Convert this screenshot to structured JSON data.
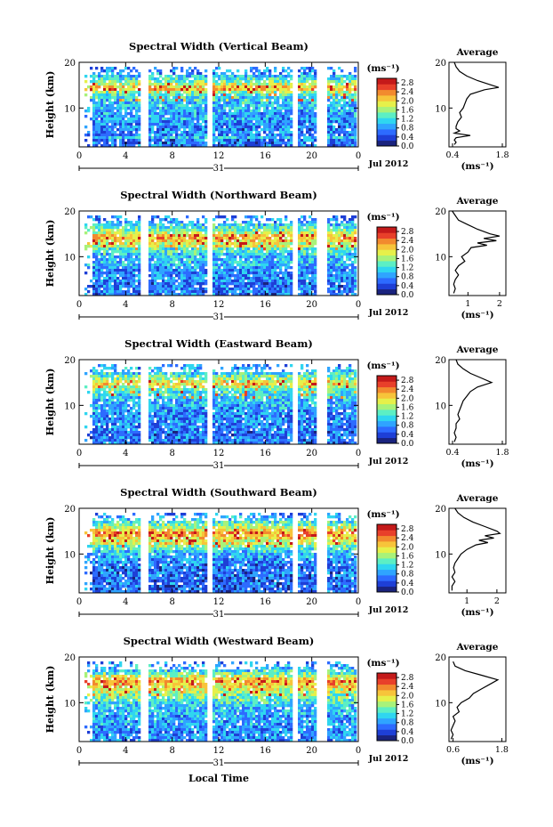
{
  "figure": {
    "date_label": "Jul 2012",
    "day_label": "31",
    "xlabel": "Local Time",
    "ylabel": "Height (km)",
    "unit_label": "(ms⁻¹)",
    "avg_title": "Average",
    "colorbar_ticks": [
      "2.8",
      "2.4",
      "2.0",
      "1.6",
      "1.2",
      "0.8",
      "0.4",
      "0.0"
    ],
    "colorscale": [
      "#1a237e",
      "#1e3fd6",
      "#2d6bff",
      "#2fa4ff",
      "#2fd6f0",
      "#5cefc4",
      "#a8f27a",
      "#e6f04a",
      "#f7c43a",
      "#f28a2e",
      "#e8402a",
      "#c41a1a"
    ],
    "x_ticks": [
      "0",
      "4",
      "8",
      "12",
      "16",
      "20",
      "0"
    ],
    "y_ticks": [
      "20",
      "10"
    ]
  },
  "chart_data": [
    {
      "type": "heatmap",
      "title": "Spectral Width (Vertical Beam)",
      "xlabel": "Local Time",
      "ylabel": "Height (km)",
      "xlim": [
        0,
        24
      ],
      "ylim": [
        1.5,
        20
      ],
      "data_gaps_hours": [
        [
          5.2,
          5.9
        ],
        [
          10.8,
          11.3
        ],
        [
          18.3,
          18.6
        ],
        [
          20.4,
          21.1
        ]
      ],
      "colorbar_range": [
        0.0,
        3.0
      ],
      "avg_profile": {
        "xlabel": "(ms⁻¹)",
        "xticks": [
          "0.4",
          "1.8"
        ],
        "xlim": [
          0.3,
          1.9
        ],
        "points": [
          [
            0.45,
            20
          ],
          [
            0.5,
            19
          ],
          [
            0.6,
            18
          ],
          [
            0.8,
            17
          ],
          [
            1.1,
            16
          ],
          [
            1.5,
            15
          ],
          [
            1.7,
            14.5
          ],
          [
            1.3,
            14
          ],
          [
            0.9,
            13
          ],
          [
            0.8,
            12
          ],
          [
            0.75,
            11
          ],
          [
            0.7,
            10
          ],
          [
            0.6,
            9
          ],
          [
            0.65,
            8
          ],
          [
            0.55,
            7
          ],
          [
            0.5,
            6
          ],
          [
            0.5,
            5.5
          ],
          [
            0.6,
            5
          ],
          [
            0.45,
            4.5
          ],
          [
            0.9,
            4
          ],
          [
            0.5,
            3.5
          ],
          [
            0.45,
            3
          ],
          [
            0.5,
            2.5
          ],
          [
            0.45,
            2
          ]
        ]
      }
    },
    {
      "type": "heatmap",
      "title": "Spectral Width (Northward Beam)",
      "xlabel": "Local Time",
      "ylabel": "Height (km)",
      "xlim": [
        0,
        24
      ],
      "ylim": [
        1.5,
        20
      ],
      "data_gaps_hours": [
        [
          5.2,
          5.9
        ],
        [
          10.8,
          11.3
        ],
        [
          18.3,
          18.6
        ],
        [
          20.4,
          21.1
        ]
      ],
      "colorbar_range": [
        0.0,
        3.0
      ],
      "avg_profile": {
        "xlabel": "(ms⁻¹)",
        "xticks": [
          "1",
          "2"
        ],
        "xlim": [
          0.4,
          2.2
        ],
        "points": [
          [
            0.5,
            20
          ],
          [
            0.6,
            19
          ],
          [
            0.7,
            18
          ],
          [
            1.0,
            17
          ],
          [
            1.3,
            16
          ],
          [
            1.7,
            15
          ],
          [
            2.0,
            14.5
          ],
          [
            1.5,
            14
          ],
          [
            1.9,
            13.5
          ],
          [
            1.3,
            13
          ],
          [
            1.6,
            12.5
          ],
          [
            1.1,
            12
          ],
          [
            1.0,
            11
          ],
          [
            0.8,
            10
          ],
          [
            0.9,
            9
          ],
          [
            0.7,
            8
          ],
          [
            0.6,
            7
          ],
          [
            0.7,
            6
          ],
          [
            0.6,
            5
          ],
          [
            0.55,
            4
          ],
          [
            0.6,
            3
          ],
          [
            0.55,
            2
          ]
        ]
      }
    },
    {
      "type": "heatmap",
      "title": "Spectral Width (Eastward Beam)",
      "xlabel": "Local Time",
      "ylabel": "Height (km)",
      "xlim": [
        0,
        24
      ],
      "ylim": [
        1.5,
        20
      ],
      "data_gaps_hours": [
        [
          5.2,
          5.9
        ],
        [
          10.8,
          11.3
        ],
        [
          18.3,
          18.6
        ],
        [
          20.4,
          21.1
        ]
      ],
      "colorbar_range": [
        0.0,
        3.0
      ],
      "avg_profile": {
        "xlabel": "(ms⁻¹)",
        "xticks": [
          "0.4",
          "1.8"
        ],
        "xlim": [
          0.3,
          1.9
        ],
        "points": [
          [
            0.5,
            20
          ],
          [
            0.55,
            19
          ],
          [
            0.7,
            18
          ],
          [
            0.9,
            17
          ],
          [
            1.2,
            16
          ],
          [
            1.5,
            15
          ],
          [
            1.3,
            14.5
          ],
          [
            1.1,
            14
          ],
          [
            0.9,
            13
          ],
          [
            0.8,
            12
          ],
          [
            0.7,
            11
          ],
          [
            0.65,
            10
          ],
          [
            0.6,
            9
          ],
          [
            0.55,
            8
          ],
          [
            0.6,
            7
          ],
          [
            0.5,
            6
          ],
          [
            0.5,
            5
          ],
          [
            0.45,
            4
          ],
          [
            0.5,
            3
          ],
          [
            0.45,
            2
          ]
        ]
      }
    },
    {
      "type": "heatmap",
      "title": "Spectral Width (Southward Beam)",
      "xlabel": "Local Time",
      "ylabel": "Height (km)",
      "xlim": [
        0,
        24
      ],
      "ylim": [
        1.5,
        20
      ],
      "data_gaps_hours": [
        [
          5.2,
          5.9
        ],
        [
          10.8,
          11.3
        ],
        [
          18.3,
          18.6
        ],
        [
          20.4,
          21.1
        ]
      ],
      "colorbar_range": [
        0.0,
        3.0
      ],
      "avg_profile": {
        "xlabel": "(ms⁻¹)",
        "xticks": [
          "1",
          "2"
        ],
        "xlim": [
          0.4,
          2.3
        ],
        "points": [
          [
            0.6,
            20
          ],
          [
            0.7,
            19
          ],
          [
            0.9,
            18
          ],
          [
            1.2,
            17
          ],
          [
            1.6,
            16
          ],
          [
            2.0,
            15
          ],
          [
            2.1,
            14.5
          ],
          [
            1.6,
            14
          ],
          [
            1.9,
            13.5
          ],
          [
            1.4,
            13
          ],
          [
            1.7,
            12.5
          ],
          [
            1.3,
            12
          ],
          [
            1.0,
            11
          ],
          [
            0.8,
            10
          ],
          [
            0.7,
            9
          ],
          [
            0.6,
            8
          ],
          [
            0.55,
            7
          ],
          [
            0.6,
            6
          ],
          [
            0.5,
            5
          ],
          [
            0.6,
            4
          ],
          [
            0.5,
            3
          ],
          [
            0.5,
            2
          ]
        ]
      }
    },
    {
      "type": "heatmap",
      "title": "Spectral Width (Westward Beam)",
      "xlabel": "Local Time",
      "ylabel": "Height (km)",
      "xlim": [
        0,
        24
      ],
      "ylim": [
        1.5,
        20
      ],
      "data_gaps_hours": [
        [
          5.2,
          5.9
        ],
        [
          10.8,
          11.3
        ],
        [
          18.3,
          18.6
        ],
        [
          20.4,
          21.1
        ]
      ],
      "colorbar_range": [
        0.0,
        3.0
      ],
      "avg_profile": {
        "xlabel": "(ms⁻¹)",
        "xticks": [
          "0.6",
          "1.8"
        ],
        "xlim": [
          0.5,
          1.9
        ],
        "points": [
          [
            0.6,
            19
          ],
          [
            0.65,
            18
          ],
          [
            0.9,
            17
          ],
          [
            1.3,
            16
          ],
          [
            1.7,
            15
          ],
          [
            1.5,
            14
          ],
          [
            1.3,
            13
          ],
          [
            1.1,
            12
          ],
          [
            1.0,
            11
          ],
          [
            0.8,
            10
          ],
          [
            0.7,
            9
          ],
          [
            0.75,
            8
          ],
          [
            0.6,
            7
          ],
          [
            0.65,
            6
          ],
          [
            0.6,
            5
          ],
          [
            0.55,
            4
          ],
          [
            0.6,
            3
          ],
          [
            0.55,
            2
          ]
        ]
      }
    }
  ]
}
